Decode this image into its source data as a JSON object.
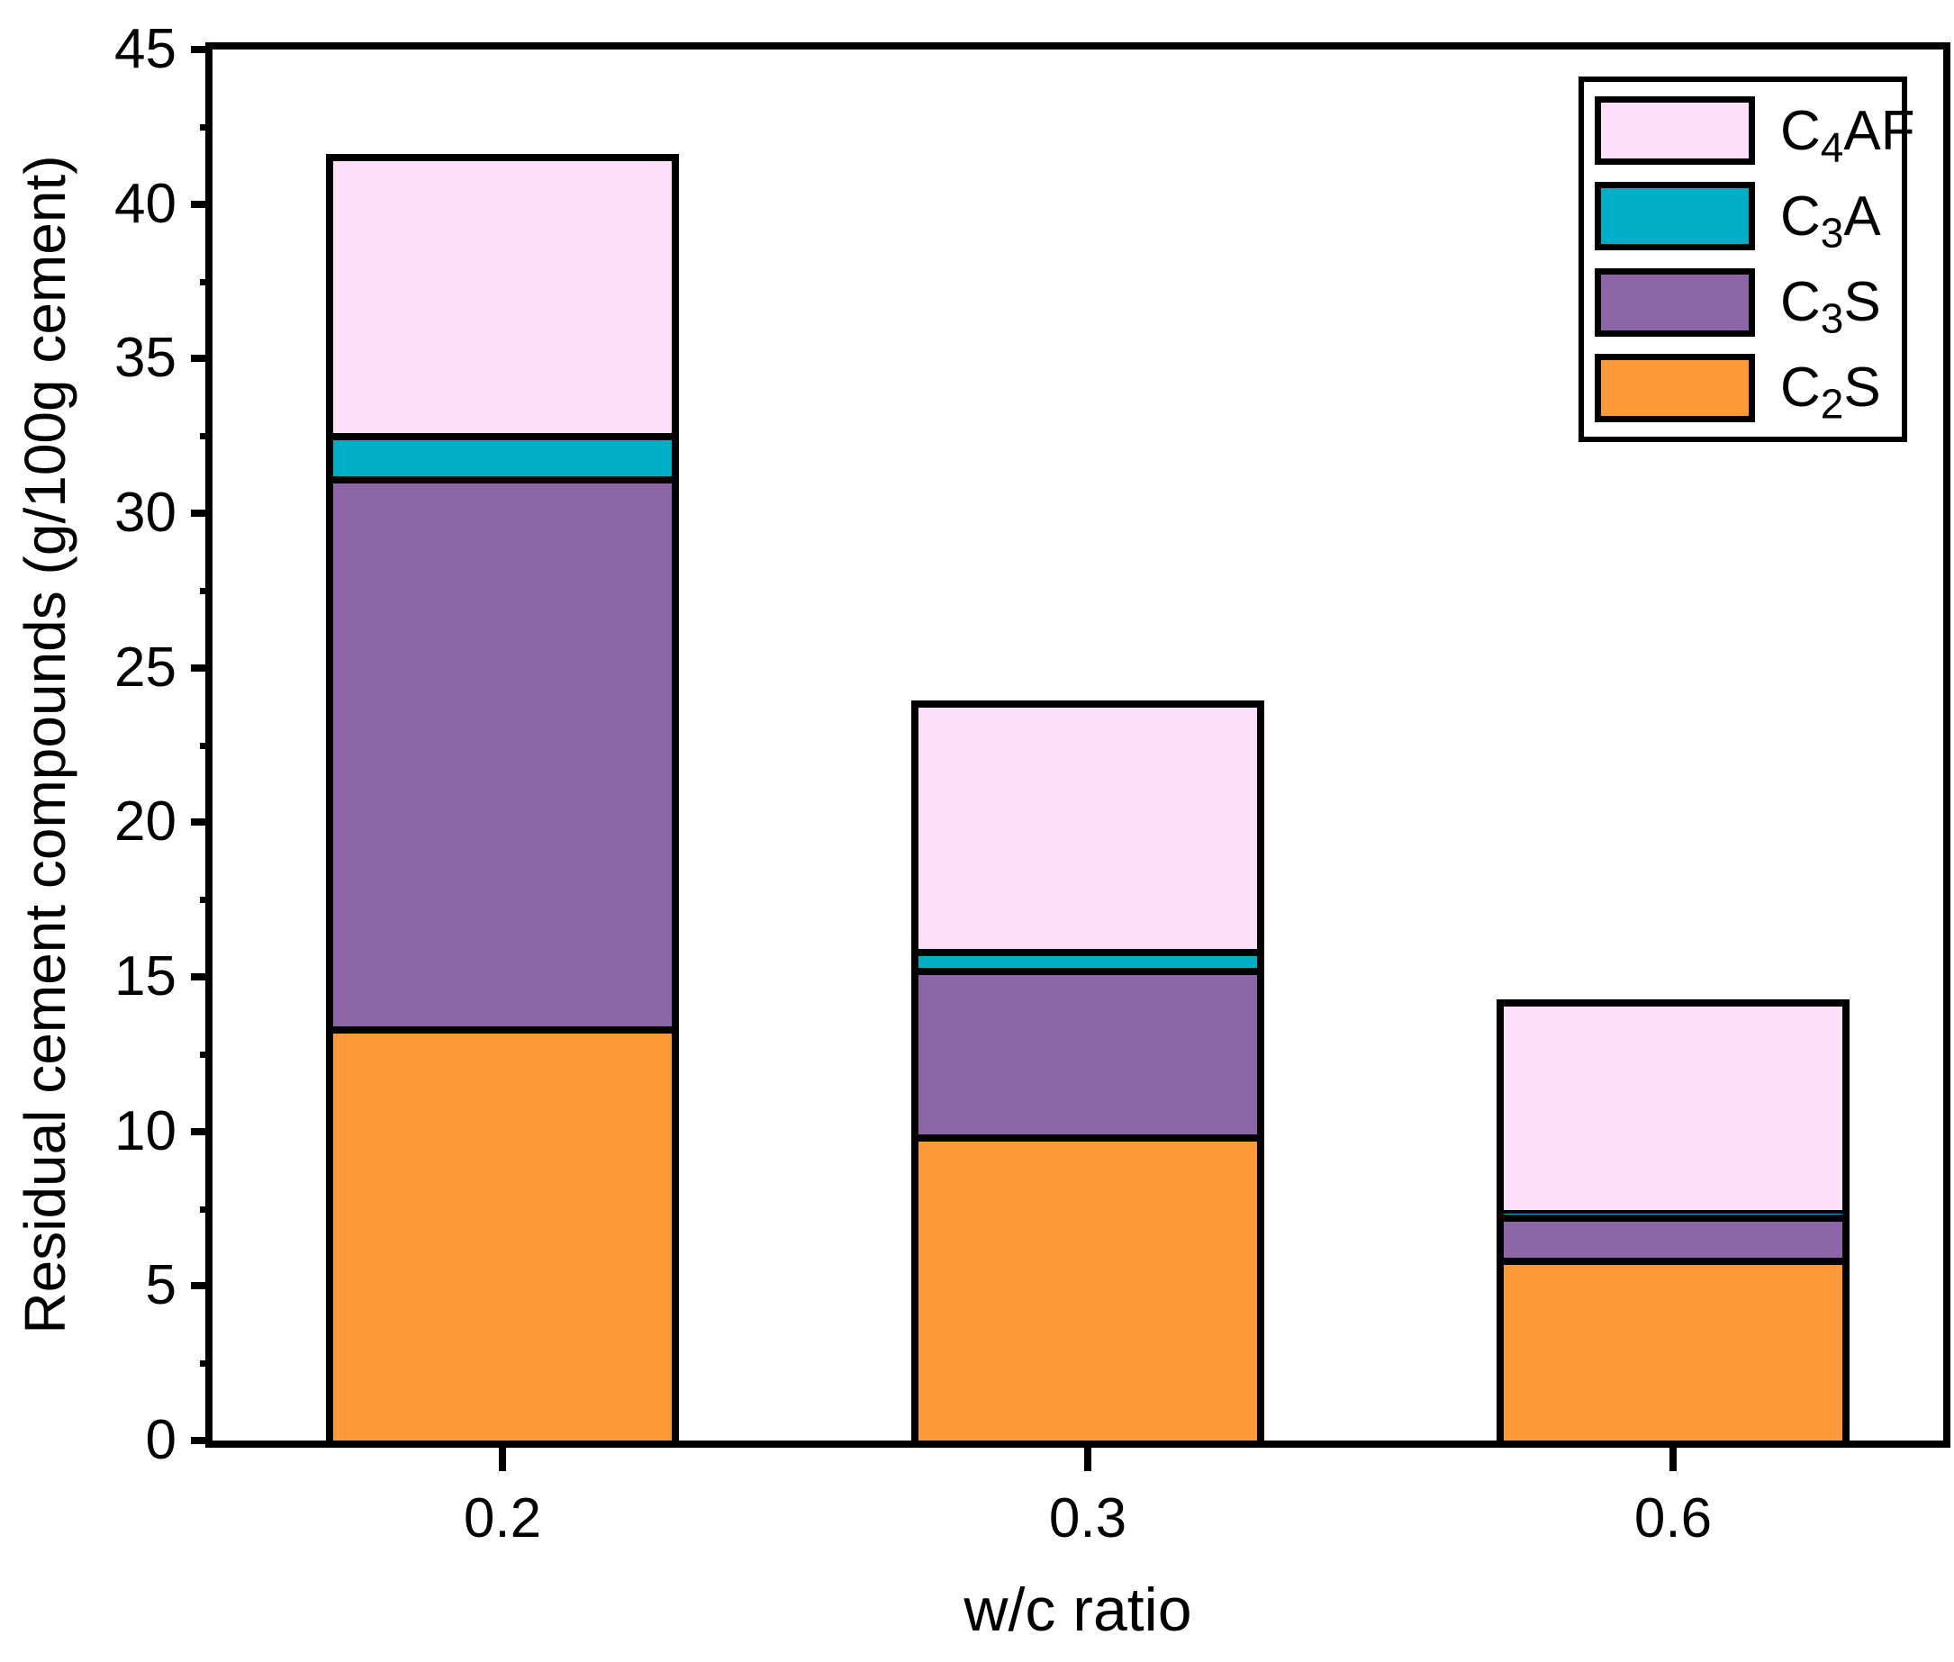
{
  "figure": {
    "background": "#ffffff",
    "frame_color": "#000000"
  },
  "y_axis": {
    "title": "Residual cement compounds (g/100g cement)",
    "tick_labels": [
      "0",
      "5",
      "10",
      "15",
      "20",
      "25",
      "30",
      "35",
      "40",
      "45"
    ],
    "range": [
      0,
      45
    ],
    "major_step": 5,
    "minor_step": 2.5
  },
  "x_axis": {
    "title": "w/c ratio",
    "categories": [
      "0.2",
      "0.3",
      "0.6"
    ]
  },
  "legend": {
    "order_top_to_bottom": [
      "C4AF",
      "C3A",
      "C3S",
      "C2S"
    ]
  },
  "chart_data": {
    "type": "bar",
    "stacked": true,
    "title": "",
    "xlabel": "w/c ratio",
    "ylabel": "Residual cement compounds (g/100g cement)",
    "categories": [
      "0.2",
      "0.3",
      "0.6"
    ],
    "series": [
      {
        "name": "C2S",
        "label_prefix": "C",
        "label_sub": "2",
        "label_suffix": "S",
        "color": "#FE9939",
        "values": [
          13.4,
          9.9,
          5.9
        ]
      },
      {
        "name": "C3S",
        "label_prefix": "C",
        "label_sub": "3",
        "label_suffix": "S",
        "color": "#8C66A6",
        "values": [
          17.8,
          5.4,
          1.4
        ]
      },
      {
        "name": "C3A",
        "label_prefix": "C",
        "label_sub": "3",
        "label_suffix": "A",
        "color": "#00ADC6",
        "values": [
          1.4,
          0.6,
          0.15
        ]
      },
      {
        "name": "C4AF",
        "label_prefix": "C",
        "label_sub": "4",
        "label_suffix": "AF",
        "color": "#FDDFFA",
        "values": [
          8.8,
          7.8,
          6.6
        ]
      }
    ],
    "stack_totals": [
      41.4,
      23.7,
      14.05
    ],
    "ylim": [
      0,
      45
    ],
    "grid": false,
    "legend_position": "top-right-inside",
    "bar_edge_color": "#000000"
  }
}
